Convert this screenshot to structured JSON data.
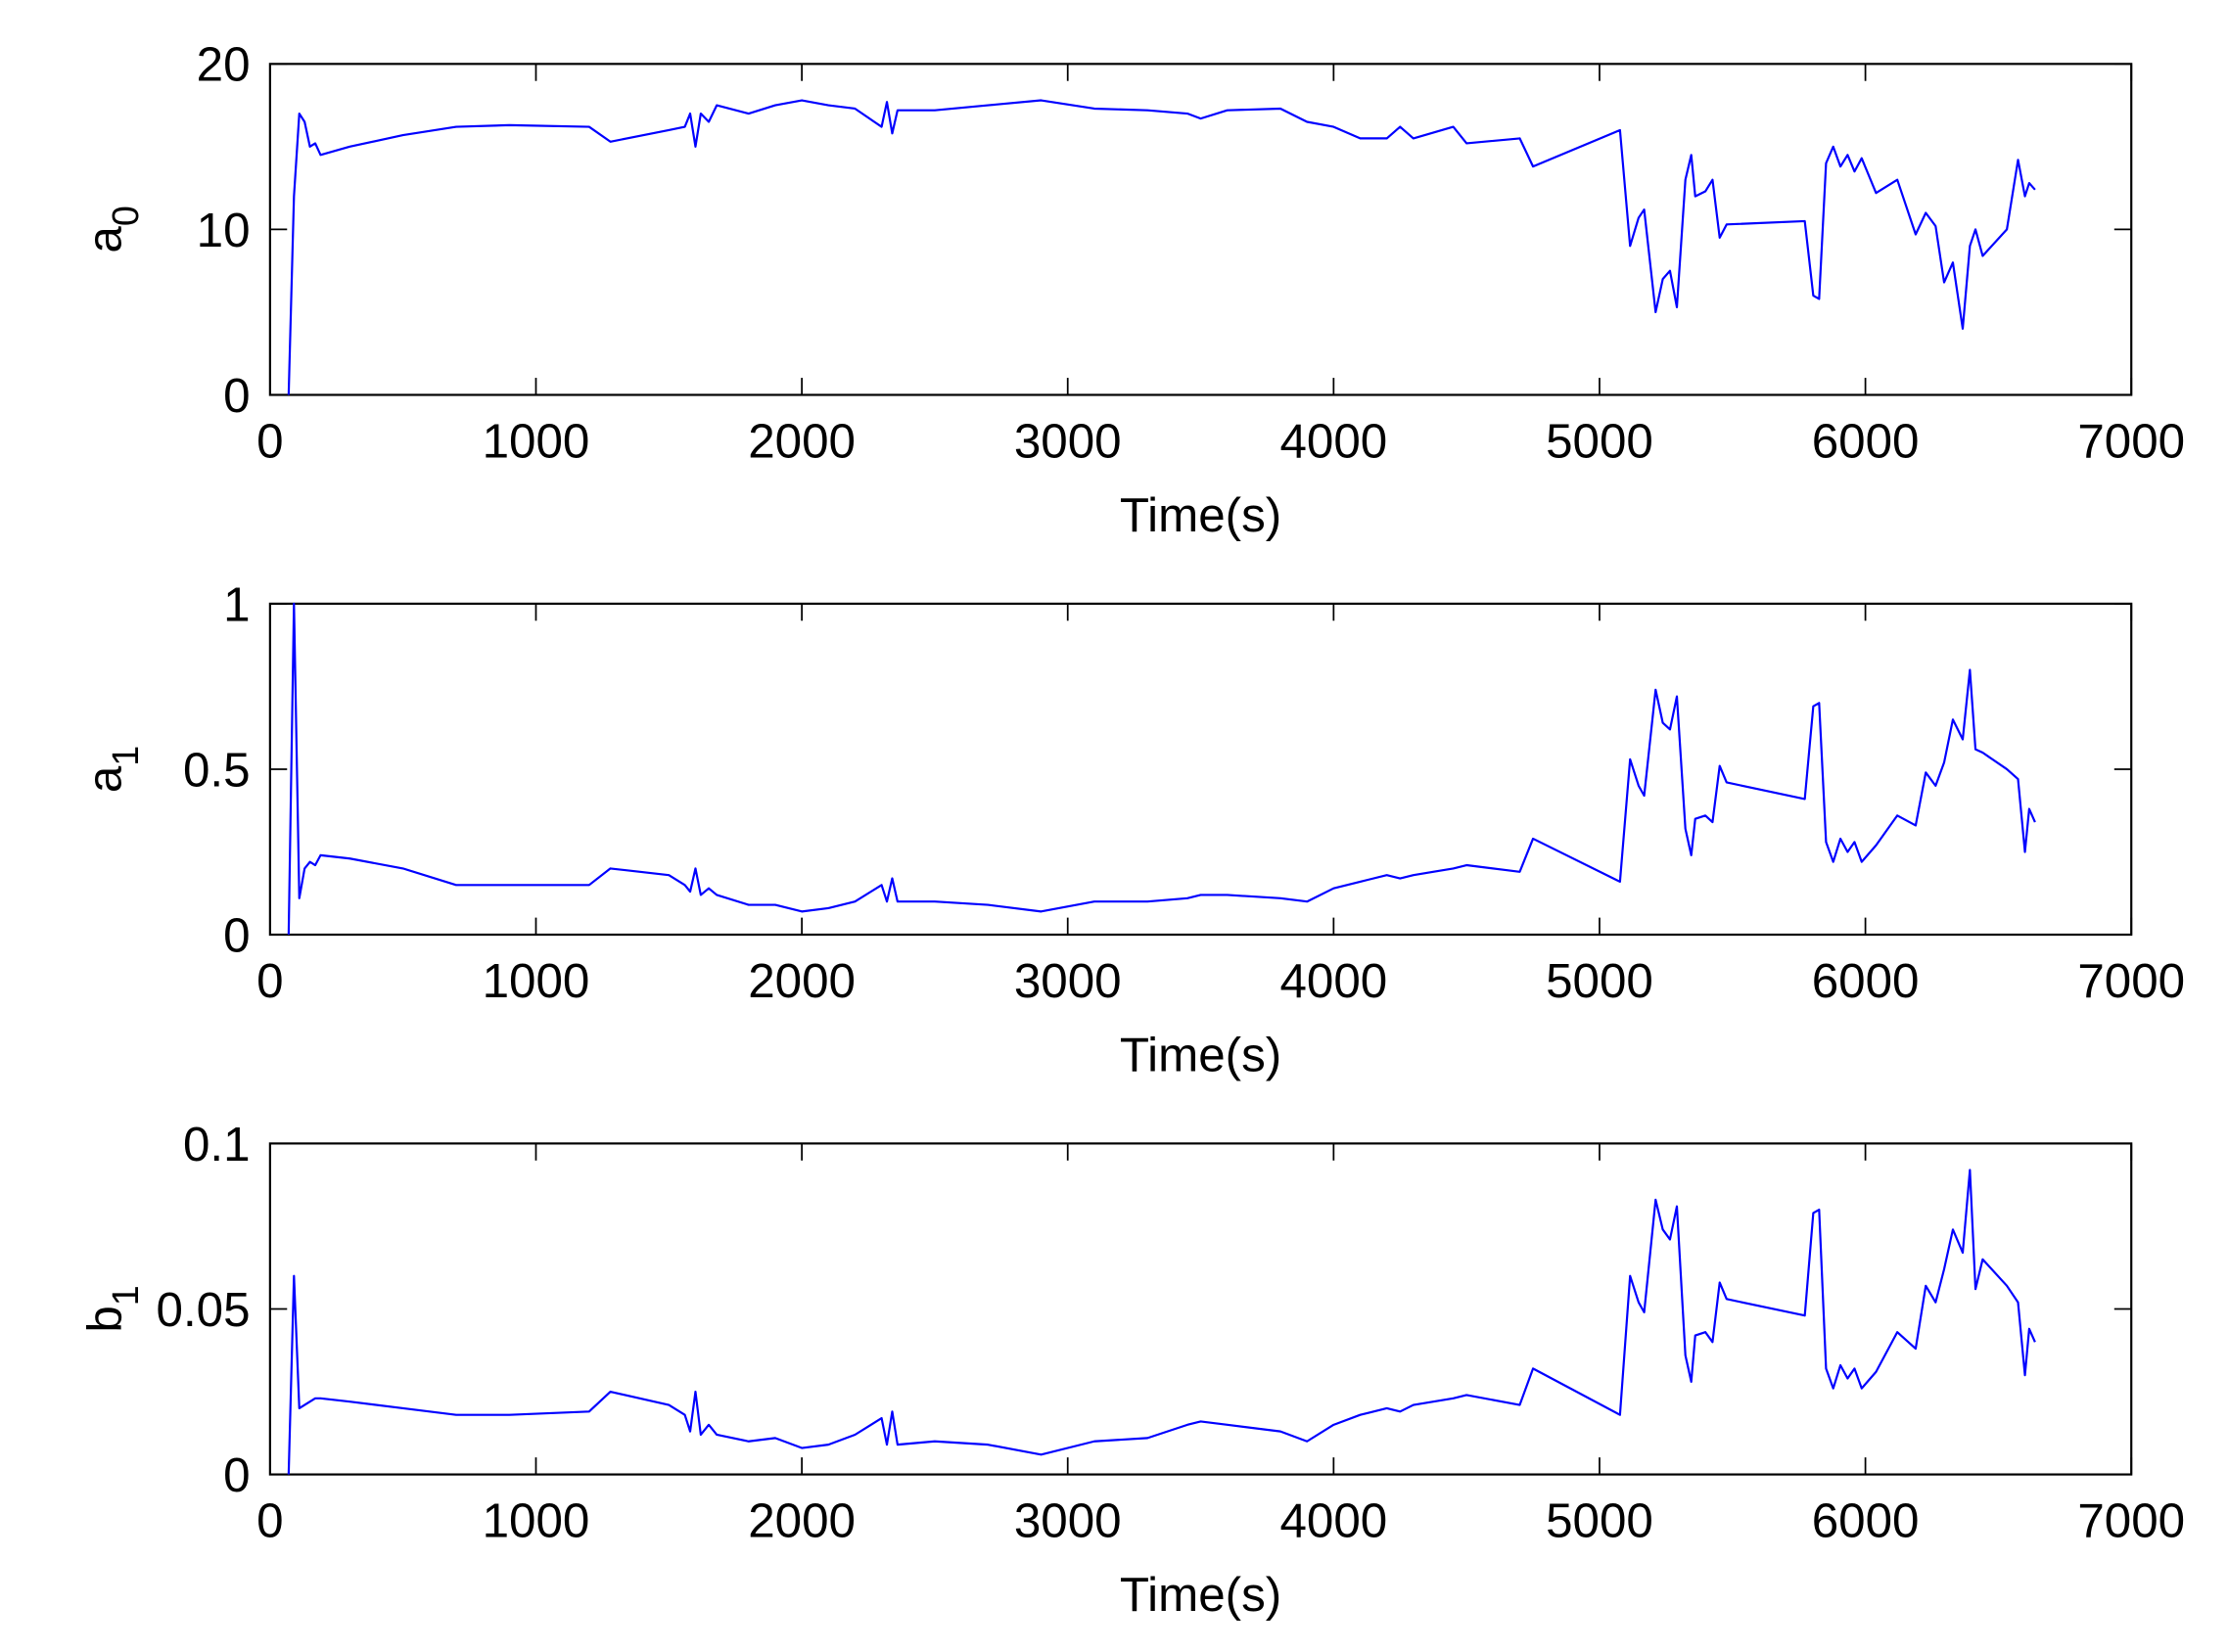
{
  "chart_data": [
    {
      "type": "line",
      "ylabel": "a",
      "ylabel_subscript": "0",
      "xlabel": "Time(s)",
      "x": [
        70,
        90,
        110,
        130,
        150,
        170,
        190,
        300,
        500,
        700,
        900,
        1200,
        1280,
        1500,
        1560,
        1580,
        1600,
        1620,
        1650,
        1680,
        1800,
        1900,
        2000,
        2100,
        2200,
        2300,
        2320,
        2340,
        2360,
        2500,
        2700,
        2900,
        3100,
        3300,
        3450,
        3500,
        3600,
        3800,
        3900,
        4000,
        4100,
        4200,
        4250,
        4300,
        4450,
        4500,
        4700,
        4750,
        5077,
        5115,
        5147,
        5168,
        5211,
        5238,
        5265,
        5291,
        5323,
        5345,
        5360,
        5398,
        5425,
        5452,
        5478,
        5772,
        5804,
        5826,
        5852,
        5879,
        5906,
        5933,
        5959,
        5986,
        6040,
        6120,
        6189,
        6227,
        6264,
        6296,
        6329,
        6366,
        6393,
        6414,
        6441,
        6532,
        6574,
        6600,
        6616,
        6638
      ],
      "values": [
        0,
        12,
        17,
        16.5,
        15,
        15.2,
        14.5,
        15,
        15.7,
        16.2,
        16.3,
        16.2,
        15.3,
        16,
        16.2,
        17,
        15,
        17,
        16.5,
        17.5,
        17,
        17.5,
        17.8,
        17.5,
        17.3,
        16.2,
        17.7,
        15.8,
        17.2,
        17.2,
        17.5,
        17.8,
        17.3,
        17.2,
        17,
        16.7,
        17.2,
        17.3,
        16.5,
        16.2,
        15.5,
        15.5,
        16.2,
        15.5,
        16.2,
        15.2,
        15.5,
        13.8,
        16,
        9,
        10.7,
        11.2,
        5,
        7,
        7.5,
        5.3,
        13,
        14.5,
        12,
        12.3,
        13,
        9.5,
        10.3,
        10.5,
        6,
        5.8,
        14,
        15,
        13.8,
        14.5,
        13.5,
        14.3,
        12.2,
        13,
        9.7,
        11,
        10.2,
        6.8,
        8,
        4,
        9,
        10,
        8.4,
        10,
        14.2,
        12,
        12.8,
        12.4
      ],
      "color": "#0000ff",
      "xlim": [
        0,
        7000
      ],
      "xticks": [
        0,
        1000,
        2000,
        3000,
        4000,
        5000,
        6000,
        7000
      ],
      "ylim": [
        0,
        20
      ],
      "yticks": [
        0,
        10,
        20
      ]
    },
    {
      "type": "line",
      "ylabel": "a",
      "ylabel_subscript": "1",
      "xlabel": "Time(s)",
      "x": [
        70,
        90,
        110,
        130,
        150,
        170,
        190,
        300,
        500,
        700,
        900,
        1200,
        1280,
        1500,
        1560,
        1580,
        1600,
        1620,
        1650,
        1680,
        1800,
        1900,
        2000,
        2100,
        2200,
        2300,
        2320,
        2340,
        2360,
        2500,
        2700,
        2900,
        3100,
        3300,
        3450,
        3500,
        3600,
        3800,
        3900,
        4000,
        4100,
        4200,
        4250,
        4300,
        4450,
        4500,
        4700,
        4750,
        5077,
        5115,
        5147,
        5168,
        5211,
        5238,
        5265,
        5291,
        5323,
        5345,
        5360,
        5398,
        5425,
        5452,
        5478,
        5772,
        5804,
        5826,
        5852,
        5879,
        5906,
        5933,
        5959,
        5986,
        6040,
        6120,
        6189,
        6227,
        6264,
        6296,
        6329,
        6366,
        6393,
        6414,
        6441,
        6532,
        6574,
        6600,
        6616,
        6638
      ],
      "values": [
        0,
        1,
        0.11,
        0.2,
        0.22,
        0.21,
        0.24,
        0.23,
        0.2,
        0.15,
        0.15,
        0.15,
        0.2,
        0.18,
        0.15,
        0.13,
        0.2,
        0.12,
        0.14,
        0.12,
        0.09,
        0.09,
        0.07,
        0.08,
        0.1,
        0.15,
        0.1,
        0.17,
        0.1,
        0.1,
        0.09,
        0.07,
        0.1,
        0.1,
        0.11,
        0.12,
        0.12,
        0.11,
        0.1,
        0.14,
        0.16,
        0.18,
        0.17,
        0.18,
        0.2,
        0.21,
        0.19,
        0.29,
        0.16,
        0.53,
        0.45,
        0.42,
        0.74,
        0.64,
        0.62,
        0.72,
        0.32,
        0.24,
        0.35,
        0.36,
        0.34,
        0.51,
        0.46,
        0.41,
        0.69,
        0.7,
        0.28,
        0.22,
        0.29,
        0.25,
        0.28,
        0.22,
        0.27,
        0.36,
        0.33,
        0.49,
        0.45,
        0.52,
        0.65,
        0.59,
        0.8,
        0.56,
        0.55,
        0.5,
        0.47,
        0.25,
        0.38,
        0.34
      ],
      "color": "#0000ff",
      "xlim": [
        0,
        7000
      ],
      "xticks": [
        0,
        1000,
        2000,
        3000,
        4000,
        5000,
        6000,
        7000
      ],
      "ylim": [
        0,
        1
      ],
      "yticks": [
        0,
        0.5,
        1
      ]
    },
    {
      "type": "line",
      "ylabel": "b",
      "ylabel_subscript": "1",
      "xlabel": "Time(s)",
      "x": [
        70,
        90,
        110,
        130,
        150,
        170,
        190,
        300,
        500,
        700,
        900,
        1200,
        1280,
        1500,
        1560,
        1580,
        1600,
        1620,
        1650,
        1680,
        1800,
        1900,
        2000,
        2100,
        2200,
        2300,
        2320,
        2340,
        2360,
        2500,
        2700,
        2900,
        3100,
        3300,
        3450,
        3500,
        3600,
        3800,
        3900,
        4000,
        4100,
        4200,
        4250,
        4300,
        4450,
        4500,
        4700,
        4750,
        5077,
        5115,
        5147,
        5168,
        5211,
        5238,
        5265,
        5291,
        5323,
        5345,
        5360,
        5398,
        5425,
        5452,
        5478,
        5772,
        5804,
        5826,
        5852,
        5879,
        5906,
        5933,
        5959,
        5986,
        6040,
        6120,
        6189,
        6227,
        6264,
        6296,
        6329,
        6366,
        6393,
        6414,
        6441,
        6532,
        6574,
        6600,
        6616,
        6638
      ],
      "values": [
        0,
        0.06,
        0.02,
        0.021,
        0.022,
        0.023,
        0.023,
        0.022,
        0.02,
        0.018,
        0.018,
        0.019,
        0.025,
        0.021,
        0.018,
        0.013,
        0.025,
        0.012,
        0.015,
        0.012,
        0.01,
        0.011,
        0.008,
        0.009,
        0.012,
        0.017,
        0.009,
        0.019,
        0.009,
        0.01,
        0.009,
        0.006,
        0.01,
        0.011,
        0.015,
        0.016,
        0.015,
        0.013,
        0.01,
        0.015,
        0.018,
        0.02,
        0.019,
        0.021,
        0.023,
        0.024,
        0.021,
        0.032,
        0.018,
        0.06,
        0.052,
        0.049,
        0.083,
        0.074,
        0.071,
        0.081,
        0.036,
        0.028,
        0.042,
        0.043,
        0.04,
        0.058,
        0.053,
        0.048,
        0.079,
        0.08,
        0.032,
        0.026,
        0.033,
        0.029,
        0.032,
        0.026,
        0.031,
        0.043,
        0.038,
        0.057,
        0.052,
        0.062,
        0.074,
        0.067,
        0.092,
        0.056,
        0.065,
        0.057,
        0.052,
        0.03,
        0.044,
        0.04
      ],
      "color": "#0000ff",
      "xlim": [
        0,
        7000
      ],
      "xticks": [
        0,
        1000,
        2000,
        3000,
        4000,
        5000,
        6000,
        7000
      ],
      "ylim": [
        0,
        0.1
      ],
      "yticks": [
        0,
        0.05,
        0.1
      ]
    }
  ]
}
